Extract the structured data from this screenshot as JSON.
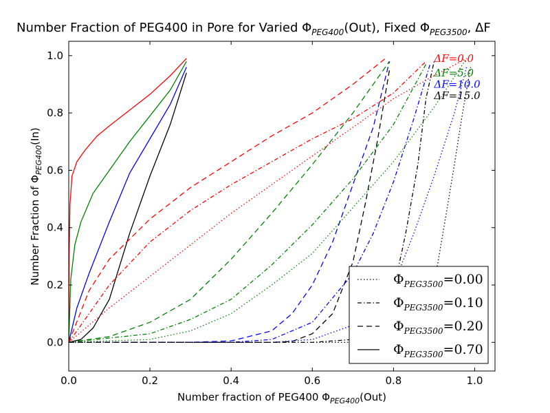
{
  "chart_data": {
    "type": "line",
    "title_parts": [
      "Number Fraction of PEG400 in Pore for Varied ",
      "Φ",
      "PEG400",
      "(Out), Fixed ",
      "Φ",
      "PEG3500",
      ", ΔF"
    ],
    "xlabel_parts": [
      "Number fraction of PEG400 ",
      "Φ",
      "PEG400",
      "(Out)"
    ],
    "ylabel_parts": [
      "Number Fraction of ",
      "Φ",
      "PEG400",
      "(In)"
    ],
    "xlim": [
      0.0,
      1.05
    ],
    "ylim": [
      -0.1,
      1.05
    ],
    "xticks": [
      0.0,
      0.2,
      0.4,
      0.6,
      0.8,
      1.0
    ],
    "xtick_labels": [
      "0.0",
      "0.2",
      "0.4",
      "0.6",
      "0.8",
      "1.0"
    ],
    "yticks": [
      0.0,
      0.2,
      0.4,
      0.6,
      0.8,
      1.0
    ],
    "ytick_labels": [
      "0.0",
      "0.2",
      "0.4",
      "0.6",
      "0.8",
      "1.0"
    ],
    "grid": false,
    "annotations": [
      {
        "text": "ΔF=0.0",
        "color": "#ff0000",
        "x": 0.9,
        "y": 0.99
      },
      {
        "text": "ΔF=5.0",
        "color": "#008000",
        "x": 0.9,
        "y": 0.94
      },
      {
        "text": "ΔF=10.0",
        "color": "#0000ff",
        "x": 0.9,
        "y": 0.9
      },
      {
        "text": "ΔF=15.0",
        "color": "#000000",
        "x": 0.9,
        "y": 0.86
      }
    ],
    "legend": {
      "placement": "lower-right",
      "entries": [
        {
          "style": "dotted",
          "label_main": "Φ",
          "label_sub": "PEG3500",
          "label_value": "=0.00"
        },
        {
          "style": "dashdot",
          "label_main": "Φ",
          "label_sub": "PEG3500",
          "label_value": "=0.10"
        },
        {
          "style": "dashed",
          "label_main": "Φ",
          "label_sub": "PEG3500",
          "label_value": "=0.20"
        },
        {
          "style": "solid",
          "label_main": "Φ",
          "label_sub": "PEG3500",
          "label_value": "=0.70"
        }
      ]
    },
    "colors": {
      "dF0": "#ff0000",
      "dF5": "#008000",
      "dF10": "#0000ff",
      "dF15": "#000000"
    },
    "series": [
      {
        "style": "solid",
        "color": "#ff0000",
        "points": [
          [
            0.0,
            0.0
          ],
          [
            0.001,
            0.3
          ],
          [
            0.003,
            0.48
          ],
          [
            0.008,
            0.58
          ],
          [
            0.02,
            0.63
          ],
          [
            0.04,
            0.67
          ],
          [
            0.07,
            0.72
          ],
          [
            0.1,
            0.755
          ],
          [
            0.15,
            0.81
          ],
          [
            0.2,
            0.865
          ],
          [
            0.25,
            0.93
          ],
          [
            0.29,
            0.99
          ]
        ]
      },
      {
        "style": "solid",
        "color": "#008000",
        "points": [
          [
            0.0,
            0.0
          ],
          [
            0.005,
            0.22
          ],
          [
            0.015,
            0.34
          ],
          [
            0.03,
            0.42
          ],
          [
            0.06,
            0.52
          ],
          [
            0.1,
            0.6
          ],
          [
            0.15,
            0.7
          ],
          [
            0.2,
            0.79
          ],
          [
            0.25,
            0.88
          ],
          [
            0.29,
            0.98
          ]
        ]
      },
      {
        "style": "solid",
        "color": "#0000ff",
        "points": [
          [
            0.0,
            0.0
          ],
          [
            0.02,
            0.12
          ],
          [
            0.05,
            0.24
          ],
          [
            0.1,
            0.42
          ],
          [
            0.15,
            0.59
          ],
          [
            0.2,
            0.71
          ],
          [
            0.25,
            0.83
          ],
          [
            0.29,
            0.96
          ]
        ]
      },
      {
        "style": "solid",
        "color": "#000000",
        "points": [
          [
            0.0,
            0.0
          ],
          [
            0.03,
            0.01
          ],
          [
            0.06,
            0.05
          ],
          [
            0.1,
            0.15
          ],
          [
            0.15,
            0.38
          ],
          [
            0.2,
            0.58
          ],
          [
            0.25,
            0.76
          ],
          [
            0.29,
            0.94
          ]
        ]
      },
      {
        "style": "dashed",
        "color": "#ff0000",
        "points": [
          [
            0.0,
            0.0
          ],
          [
            0.05,
            0.18
          ],
          [
            0.1,
            0.29
          ],
          [
            0.2,
            0.43
          ],
          [
            0.3,
            0.54
          ],
          [
            0.4,
            0.63
          ],
          [
            0.5,
            0.72
          ],
          [
            0.6,
            0.8
          ],
          [
            0.7,
            0.9
          ],
          [
            0.78,
            0.99
          ]
        ]
      },
      {
        "style": "dashed",
        "color": "#008000",
        "points": [
          [
            0.0,
            0.0
          ],
          [
            0.1,
            0.02
          ],
          [
            0.2,
            0.07
          ],
          [
            0.3,
            0.15
          ],
          [
            0.4,
            0.29
          ],
          [
            0.5,
            0.45
          ],
          [
            0.6,
            0.62
          ],
          [
            0.7,
            0.8
          ],
          [
            0.79,
            0.98
          ]
        ]
      },
      {
        "style": "dashed",
        "color": "#0000ff",
        "points": [
          [
            0.0,
            0.0
          ],
          [
            0.3,
            0.0
          ],
          [
            0.4,
            0.005
          ],
          [
            0.5,
            0.04
          ],
          [
            0.55,
            0.1
          ],
          [
            0.6,
            0.2
          ],
          [
            0.65,
            0.35
          ],
          [
            0.7,
            0.55
          ],
          [
            0.75,
            0.75
          ],
          [
            0.79,
            0.98
          ]
        ]
      },
      {
        "style": "dashed",
        "color": "#000000",
        "points": [
          [
            0.0,
            0.0
          ],
          [
            0.5,
            0.0
          ],
          [
            0.55,
            0.003
          ],
          [
            0.6,
            0.03
          ],
          [
            0.65,
            0.1
          ],
          [
            0.7,
            0.28
          ],
          [
            0.73,
            0.48
          ],
          [
            0.76,
            0.7
          ],
          [
            0.79,
            0.95
          ]
        ]
      },
      {
        "style": "dashdot",
        "color": "#ff0000",
        "points": [
          [
            0.0,
            0.0
          ],
          [
            0.05,
            0.1
          ],
          [
            0.1,
            0.2
          ],
          [
            0.2,
            0.35
          ],
          [
            0.3,
            0.46
          ],
          [
            0.4,
            0.55
          ],
          [
            0.5,
            0.63
          ],
          [
            0.6,
            0.71
          ],
          [
            0.7,
            0.78
          ],
          [
            0.8,
            0.87
          ],
          [
            0.88,
            0.98
          ]
        ]
      },
      {
        "style": "dashdot",
        "color": "#008000",
        "points": [
          [
            0.0,
            0.0
          ],
          [
            0.2,
            0.03
          ],
          [
            0.3,
            0.08
          ],
          [
            0.4,
            0.15
          ],
          [
            0.5,
            0.27
          ],
          [
            0.6,
            0.41
          ],
          [
            0.7,
            0.57
          ],
          [
            0.8,
            0.76
          ],
          [
            0.88,
            0.97
          ]
        ]
      },
      {
        "style": "dashdot",
        "color": "#0000ff",
        "points": [
          [
            0.0,
            0.0
          ],
          [
            0.4,
            0.0
          ],
          [
            0.5,
            0.01
          ],
          [
            0.6,
            0.07
          ],
          [
            0.7,
            0.24
          ],
          [
            0.75,
            0.38
          ],
          [
            0.8,
            0.56
          ],
          [
            0.85,
            0.78
          ],
          [
            0.89,
            0.97
          ]
        ]
      },
      {
        "style": "dashdot",
        "color": "#000000",
        "points": [
          [
            0.0,
            0.0
          ],
          [
            0.6,
            0.0
          ],
          [
            0.7,
            0.01
          ],
          [
            0.75,
            0.05
          ],
          [
            0.8,
            0.18
          ],
          [
            0.83,
            0.38
          ],
          [
            0.86,
            0.62
          ],
          [
            0.88,
            0.85
          ],
          [
            0.9,
            0.98
          ]
        ]
      },
      {
        "style": "dotted",
        "color": "#ff0000",
        "points": [
          [
            0.0,
            0.0
          ],
          [
            0.1,
            0.12
          ],
          [
            0.2,
            0.23
          ],
          [
            0.3,
            0.34
          ],
          [
            0.4,
            0.45
          ],
          [
            0.5,
            0.55
          ],
          [
            0.6,
            0.65
          ],
          [
            0.7,
            0.75
          ],
          [
            0.8,
            0.85
          ],
          [
            0.9,
            0.93
          ],
          [
            0.98,
            0.99
          ]
        ]
      },
      {
        "style": "dotted",
        "color": "#008000",
        "points": [
          [
            0.0,
            0.0
          ],
          [
            0.2,
            0.01
          ],
          [
            0.3,
            0.04
          ],
          [
            0.4,
            0.1
          ],
          [
            0.5,
            0.2
          ],
          [
            0.6,
            0.31
          ],
          [
            0.7,
            0.47
          ],
          [
            0.8,
            0.63
          ],
          [
            0.9,
            0.82
          ],
          [
            0.98,
            0.99
          ]
        ]
      },
      {
        "style": "dotted",
        "color": "#0000ff",
        "points": [
          [
            0.0,
            0.0
          ],
          [
            0.5,
            0.0
          ],
          [
            0.6,
            0.01
          ],
          [
            0.7,
            0.06
          ],
          [
            0.8,
            0.2
          ],
          [
            0.85,
            0.38
          ],
          [
            0.9,
            0.58
          ],
          [
            0.95,
            0.8
          ],
          [
            0.98,
            0.96
          ]
        ]
      },
      {
        "style": "dotted",
        "color": "#000000",
        "points": [
          [
            0.0,
            0.0
          ],
          [
            0.7,
            0.0
          ],
          [
            0.8,
            0.01
          ],
          [
            0.85,
            0.05
          ],
          [
            0.9,
            0.2
          ],
          [
            0.93,
            0.45
          ],
          [
            0.95,
            0.62
          ],
          [
            0.97,
            0.8
          ],
          [
            0.99,
            0.96
          ]
        ]
      }
    ]
  }
}
